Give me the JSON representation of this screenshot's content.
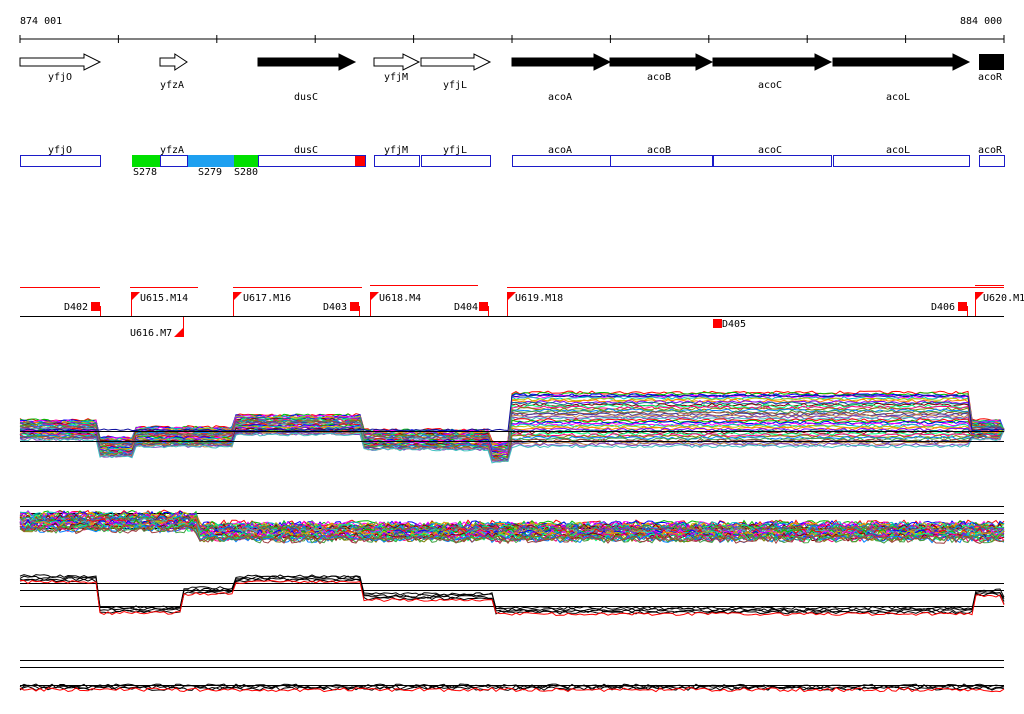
{
  "coords": {
    "start": "874 001",
    "end": "884 000"
  },
  "colors": {
    "outline_blue": "#1c1cc8",
    "red": "#ff0000",
    "green": "#00e000",
    "cyan": "#1ea0f0",
    "black": "#000000"
  },
  "genes": [
    {
      "label": "yfjO",
      "strand": "+",
      "fill": "white"
    },
    {
      "label": "yfzA",
      "strand": "+",
      "fill": "white"
    },
    {
      "label": "dusC",
      "strand": "+",
      "fill": "black"
    },
    {
      "label": "yfjM",
      "strand": "+",
      "fill": "white"
    },
    {
      "label": "yfjL",
      "strand": "+",
      "fill": "white"
    },
    {
      "label": "acoA",
      "strand": "+",
      "fill": "black"
    },
    {
      "label": "acoB",
      "strand": "+",
      "fill": "black"
    },
    {
      "label": "acoC",
      "strand": "+",
      "fill": "black"
    },
    {
      "label": "acoL",
      "strand": "+",
      "fill": "black"
    },
    {
      "label": "acoR",
      "strand": "+",
      "fill": "black"
    }
  ],
  "segment_labels": [
    "S278",
    "S279",
    "S280"
  ],
  "transcription_markers": [
    {
      "label": "D402",
      "type": "downshift"
    },
    {
      "label": "U615.M14",
      "type": "upshift"
    },
    {
      "label": "U616.M7",
      "type": "upshift"
    },
    {
      "label": "U617.M16",
      "type": "upshift"
    },
    {
      "label": "D403",
      "type": "downshift"
    },
    {
      "label": "U618.M4",
      "type": "upshift"
    },
    {
      "label": "D404",
      "type": "downshift"
    },
    {
      "label": "U619.M18",
      "type": "upshift"
    },
    {
      "label": "D405",
      "type": "downshift"
    },
    {
      "label": "D406",
      "type": "downshift"
    },
    {
      "label": "U620.M1",
      "type": "upshift"
    }
  ],
  "expression_tracks": [
    {
      "name": "condition profiles (top)"
    },
    {
      "name": "condition profiles (bottom)"
    },
    {
      "name": "summary profile (top)"
    },
    {
      "name": "summary profile (bottom)"
    }
  ]
}
